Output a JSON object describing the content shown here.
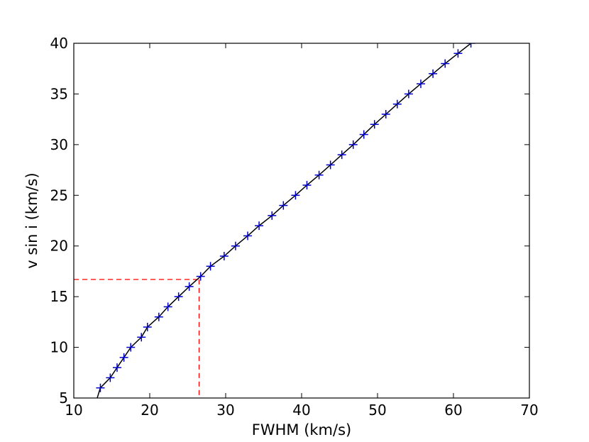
{
  "chart_data": {
    "type": "line",
    "title": "",
    "xlabel": "FWHM (km/s)",
    "ylabel": "v sin i (km/s)",
    "xlim": [
      10,
      70
    ],
    "ylim": [
      5,
      40
    ],
    "xticks": [
      "10",
      "20",
      "30",
      "40",
      "50",
      "60",
      "70"
    ],
    "yticks": [
      "5",
      "10",
      "15",
      "20",
      "25",
      "30",
      "35",
      "40"
    ],
    "grid": false,
    "legend": "none",
    "series": [
      {
        "type": "line",
        "color": "#000000",
        "x": [
          13.0,
          13.5,
          14.8,
          15.7,
          16.6,
          17.5,
          18.9,
          19.7,
          21.2,
          22.4,
          23.8,
          25.2,
          26.7,
          28.0,
          29.8,
          31.3,
          32.9,
          34.4,
          36.1,
          37.6,
          39.2,
          40.7,
          42.3,
          43.8,
          45.3,
          46.8,
          48.2,
          49.6,
          51.1,
          52.6,
          54.1,
          55.7,
          57.3,
          58.9,
          60.6,
          62.3
        ],
        "y": [
          4.8,
          6,
          7,
          8,
          9,
          10,
          11,
          12,
          13,
          14,
          15,
          16,
          17,
          18,
          19,
          20,
          21,
          22,
          23,
          24,
          25,
          26,
          27,
          28,
          29,
          30,
          31,
          32,
          33,
          34,
          35,
          36,
          37,
          38,
          39,
          40
        ]
      },
      {
        "type": "scatter",
        "marker": "plus",
        "color": "#0000cc",
        "x": [
          13.5,
          14.8,
          15.7,
          16.6,
          17.5,
          18.9,
          19.7,
          21.2,
          22.4,
          23.8,
          25.2,
          26.7,
          28.0,
          29.8,
          31.3,
          32.9,
          34.4,
          36.1,
          37.6,
          39.2,
          40.7,
          42.3,
          43.8,
          45.3,
          46.8,
          48.2,
          49.6,
          51.1,
          52.6,
          54.1,
          55.7,
          57.3,
          58.9,
          60.6,
          62.3
        ],
        "y": [
          6,
          7,
          8,
          9,
          10,
          11,
          12,
          13,
          14,
          15,
          16,
          17,
          18,
          19,
          20,
          21,
          22,
          23,
          24,
          25,
          26,
          27,
          28,
          29,
          30,
          31,
          32,
          33,
          34,
          35,
          36,
          37,
          38,
          39,
          40
        ]
      }
    ],
    "reference_lines": {
      "color": "#ff0000",
      "style": "dashed",
      "x": 26.5,
      "y": 16.7
    }
  }
}
